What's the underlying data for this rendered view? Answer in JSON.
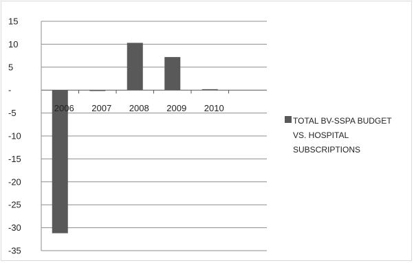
{
  "chart_data": {
    "type": "bar",
    "categories": [
      "2006",
      "2007",
      "2008",
      "2009",
      "2010"
    ],
    "series": [
      {
        "name": "TOTAL BV-SSPA BUDGET VS. HOSPITAL SUBSCRIPTIONS",
        "values": [
          -31.2,
          -0.2,
          10.3,
          7.2,
          0.2
        ],
        "color": "#595959"
      }
    ],
    "title": "",
    "xlabel": "",
    "ylabel": "",
    "ylim": [
      -35,
      15
    ],
    "yticks": [
      15,
      10,
      5,
      0,
      -5,
      -10,
      -15,
      -20,
      -25,
      -30,
      -35
    ],
    "ytick_labels": [
      "15",
      "10",
      "5",
      "-",
      "-5",
      "-10",
      "-15",
      "-20",
      "-25",
      "-30",
      "-35"
    ],
    "grid": true,
    "legend": {
      "position": "right",
      "lines": [
        "TOTAL BV-SSPA BUDGET",
        "VS. HOSPITAL",
        "SUBSCRIPTIONS"
      ]
    },
    "gridline_color": "#8c8c8c"
  }
}
